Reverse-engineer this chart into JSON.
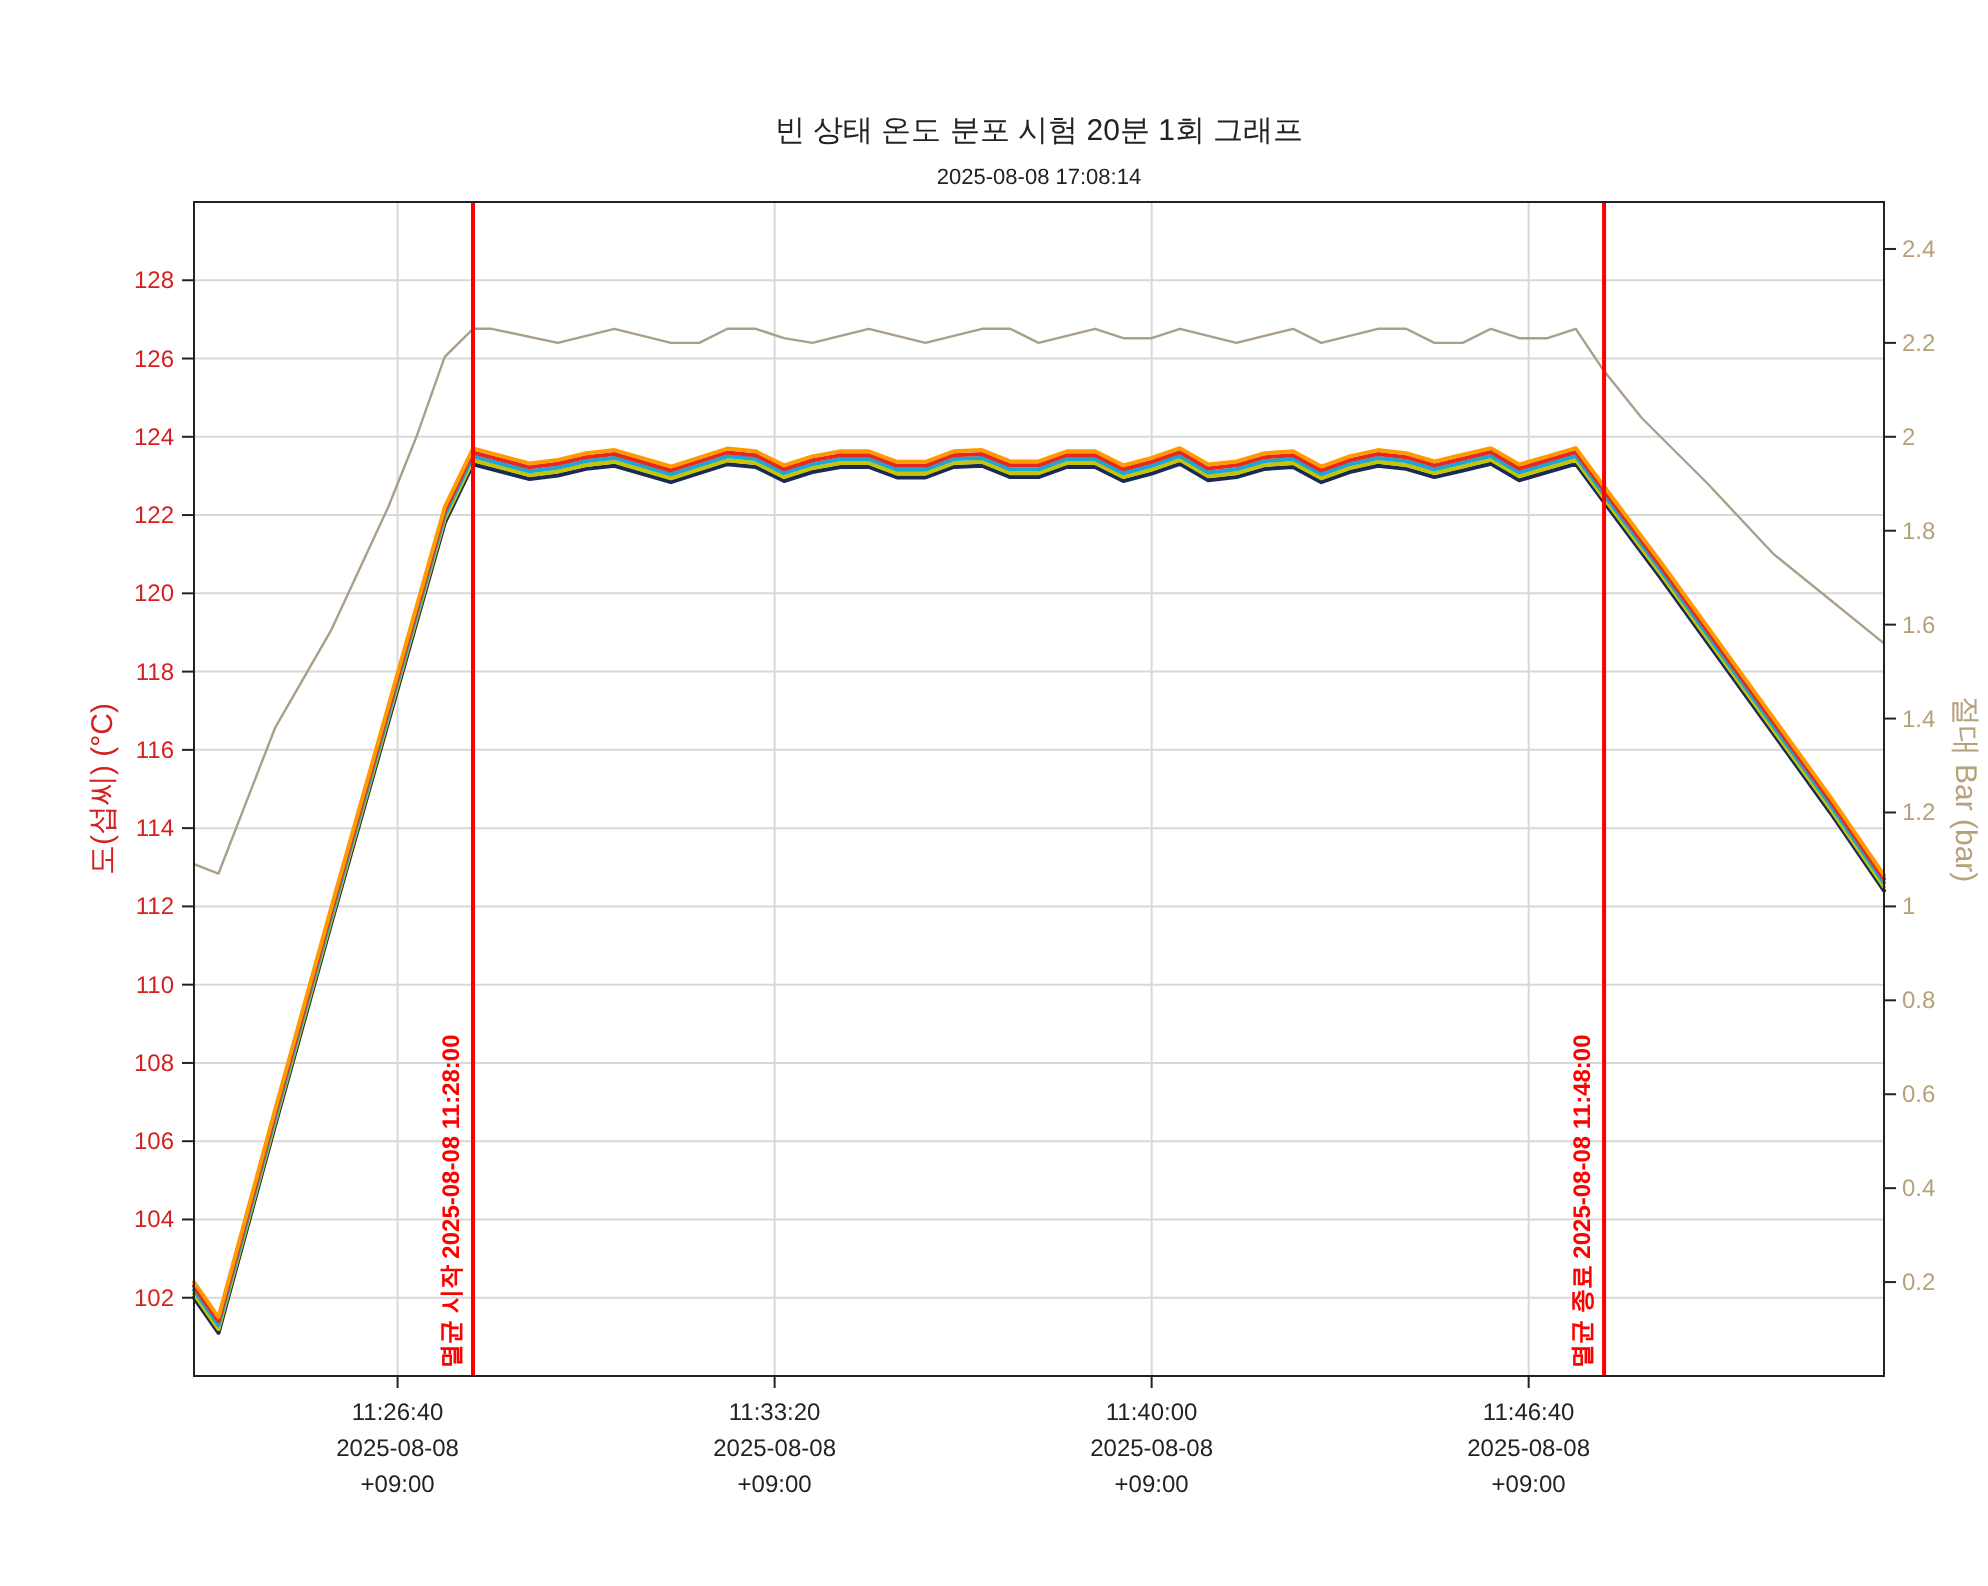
{
  "chart_data": {
    "type": "line",
    "title": "빈 상태 온도 분포 시험 20분 1회 그래프",
    "subtitle": "2025-08-08 17:08:14",
    "ylabel": "도(섭씨) (°C)",
    "y2label": "절대 Bar (bar)",
    "x": [
      "2025-08-08T11:23:04",
      "2025-08-08T11:23:30",
      "2025-08-08T11:24:30",
      "2025-08-08T11:25:30",
      "2025-08-08T11:26:30",
      "2025-08-08T11:27:30",
      "2025-08-08T11:28:00",
      "2025-08-08T11:29:00",
      "2025-08-08T11:29:30",
      "2025-08-08T11:30:00",
      "2025-08-08T11:30:30",
      "2025-08-08T11:31:30",
      "2025-08-08T11:32:30",
      "2025-08-08T11:33:00",
      "2025-08-08T11:33:30",
      "2025-08-08T11:34:00",
      "2025-08-08T11:34:30",
      "2025-08-08T11:35:00",
      "2025-08-08T11:35:30",
      "2025-08-08T11:36:00",
      "2025-08-08T11:36:30",
      "2025-08-08T11:37:00",
      "2025-08-08T11:37:30",
      "2025-08-08T11:38:00",
      "2025-08-08T11:38:30",
      "2025-08-08T11:39:00",
      "2025-08-08T11:39:30",
      "2025-08-08T11:40:00",
      "2025-08-08T11:40:30",
      "2025-08-08T11:41:00",
      "2025-08-08T11:41:30",
      "2025-08-08T11:42:00",
      "2025-08-08T11:42:30",
      "2025-08-08T11:43:00",
      "2025-08-08T11:43:30",
      "2025-08-08T11:44:00",
      "2025-08-08T11:44:30",
      "2025-08-08T11:45:00",
      "2025-08-08T11:45:30",
      "2025-08-08T11:46:00",
      "2025-08-08T11:46:30",
      "2025-08-08T11:47:00",
      "2025-08-08T11:47:30",
      "2025-08-08T11:48:00",
      "2025-08-08T11:49:00",
      "2025-08-08T11:50:30",
      "2025-08-08T11:52:00",
      "2025-08-08T11:52:57"
    ],
    "series": [
      {
        "color": "#1b2a55",
        "values": [
          102.0,
          101.1,
          106.4,
          111.6,
          116.7,
          121.8,
          123.3,
          122.92,
          123.01,
          123.18,
          123.26,
          122.84,
          123.3,
          123.23,
          122.87,
          123.1,
          123.23,
          123.23,
          122.96,
          122.96,
          123.23,
          123.26,
          122.97,
          122.97,
          123.23,
          123.23,
          122.87,
          123.06,
          123.31,
          122.89,
          122.97,
          123.18,
          123.23,
          122.84,
          123.1,
          123.26,
          123.18,
          122.97,
          123.14,
          123.31,
          122.89,
          123.1,
          123.31,
          122.33,
          120.4,
          117.4,
          114.4,
          112.4
        ]
      },
      {
        "color": "#c8c400",
        "values": [
          102.1,
          101.2,
          106.5,
          111.7,
          116.8,
          121.9,
          123.4,
          123.02,
          123.11,
          123.28,
          123.36,
          122.94,
          123.4,
          123.33,
          122.97,
          123.2,
          123.33,
          123.33,
          123.06,
          123.06,
          123.33,
          123.36,
          123.07,
          123.07,
          123.33,
          123.33,
          122.97,
          123.16,
          123.41,
          122.99,
          123.07,
          123.28,
          123.33,
          122.94,
          123.2,
          123.36,
          123.28,
          123.07,
          123.24,
          123.41,
          122.99,
          123.2,
          123.41,
          122.43,
          120.5,
          117.5,
          114.5,
          112.5
        ]
      },
      {
        "color": "#1aa6d6",
        "values": [
          102.2,
          101.3,
          106.6,
          111.8,
          116.9,
          122.0,
          123.5,
          123.12,
          123.21,
          123.38,
          123.46,
          123.04,
          123.5,
          123.43,
          123.07,
          123.3,
          123.43,
          123.43,
          123.16,
          123.16,
          123.43,
          123.46,
          123.17,
          123.17,
          123.43,
          123.43,
          123.07,
          123.26,
          123.51,
          123.09,
          123.17,
          123.38,
          123.43,
          123.04,
          123.3,
          123.46,
          123.38,
          123.17,
          123.34,
          123.51,
          123.09,
          123.3,
          123.51,
          122.53,
          120.6,
          117.6,
          114.6,
          112.6
        ]
      },
      {
        "color": "#e8281e",
        "values": [
          102.3,
          101.4,
          106.7,
          111.9,
          117.0,
          122.1,
          123.6,
          123.22,
          123.31,
          123.48,
          123.56,
          123.14,
          123.6,
          123.53,
          123.17,
          123.4,
          123.53,
          123.53,
          123.26,
          123.26,
          123.53,
          123.56,
          123.27,
          123.27,
          123.53,
          123.53,
          123.17,
          123.36,
          123.61,
          123.19,
          123.27,
          123.48,
          123.53,
          123.14,
          123.4,
          123.56,
          123.48,
          123.27,
          123.44,
          123.61,
          123.19,
          123.4,
          123.61,
          122.63,
          120.7,
          117.7,
          114.7,
          112.7
        ]
      },
      {
        "color": "#ff9a00",
        "values": [
          102.4,
          101.5,
          106.8,
          112.0,
          117.1,
          122.2,
          123.7,
          123.32,
          123.41,
          123.58,
          123.66,
          123.24,
          123.7,
          123.63,
          123.27,
          123.5,
          123.63,
          123.63,
          123.36,
          123.36,
          123.63,
          123.66,
          123.37,
          123.37,
          123.63,
          123.63,
          123.27,
          123.46,
          123.71,
          123.29,
          123.37,
          123.58,
          123.63,
          123.24,
          123.5,
          123.66,
          123.58,
          123.37,
          123.54,
          123.71,
          123.29,
          123.5,
          123.71,
          122.73,
          120.8,
          117.8,
          114.8,
          112.8
        ]
      },
      {
        "color": "#aaa08a",
        "axis": "y2",
        "x": [
          "2025-08-08T11:23:04",
          "2025-08-08T11:23:30",
          "2025-08-08T11:24:30",
          "2025-08-08T11:25:30",
          "2025-08-08T11:26:30",
          "2025-08-08T11:27:00",
          "2025-08-08T11:27:30",
          "2025-08-08T11:28:00",
          "2025-08-08T11:28:20",
          "2025-08-08T11:29:30",
          "2025-08-08T11:30:30",
          "2025-08-08T11:31:30",
          "2025-08-08T11:32:00",
          "2025-08-08T11:32:30",
          "2025-08-08T11:33:00",
          "2025-08-08T11:33:30",
          "2025-08-08T11:34:00",
          "2025-08-08T11:35:00",
          "2025-08-08T11:36:00",
          "2025-08-08T11:37:00",
          "2025-08-08T11:37:30",
          "2025-08-08T11:38:00",
          "2025-08-08T11:39:00",
          "2025-08-08T11:39:30",
          "2025-08-08T11:40:00",
          "2025-08-08T11:40:30",
          "2025-08-08T11:41:30",
          "2025-08-08T11:42:30",
          "2025-08-08T11:43:00",
          "2025-08-08T11:44:00",
          "2025-08-08T11:44:30",
          "2025-08-08T11:45:00",
          "2025-08-08T11:45:30",
          "2025-08-08T11:46:00",
          "2025-08-08T11:46:30",
          "2025-08-08T11:47:00",
          "2025-08-08T11:47:30",
          "2025-08-08T11:48:00",
          "2025-08-08T11:48:40",
          "2025-08-08T11:49:50",
          "2025-08-08T11:51:00",
          "2025-08-08T11:52:57"
        ],
        "values": [
          1.09,
          1.07,
          1.38,
          1.59,
          1.85,
          2.0,
          2.17,
          2.23,
          2.23,
          2.2,
          2.23,
          2.2,
          2.2,
          2.23,
          2.23,
          2.21,
          2.2,
          2.23,
          2.2,
          2.23,
          2.23,
          2.2,
          2.23,
          2.21,
          2.21,
          2.23,
          2.2,
          2.23,
          2.2,
          2.23,
          2.23,
          2.2,
          2.2,
          2.23,
          2.21,
          2.21,
          2.23,
          2.14,
          2.04,
          1.9,
          1.75,
          1.56
        ]
      }
    ],
    "xlim": [
      "2025-08-08T11:23:04",
      "2025-08-08T11:52:57"
    ],
    "xticks": [
      {
        "value": "2025-08-08T11:26:40",
        "label": "11:26:40\n2025-08-08\n+09:00"
      },
      {
        "value": "2025-08-08T11:33:20",
        "label": "11:33:20\n2025-08-08\n+09:00"
      },
      {
        "value": "2025-08-08T11:40:00",
        "label": "11:40:00\n2025-08-08\n+09:00"
      },
      {
        "value": "2025-08-08T11:46:40",
        "label": "11:46:40\n2025-08-08\n+09:00"
      }
    ],
    "ylim": [
      100,
      130
    ],
    "yticks": [
      102,
      104,
      106,
      108,
      110,
      112,
      114,
      116,
      118,
      120,
      122,
      124,
      126,
      128
    ],
    "y2lim": [
      0,
      2.5
    ],
    "y2ticks": [
      0.2,
      0.4,
      0.6,
      0.8,
      1,
      1.2,
      1.4,
      1.6,
      1.8,
      2,
      2.2,
      2.4
    ],
    "ref_lines": [
      {
        "axis": "x",
        "value": "2025-08-08T11:28:00",
        "label": "멸균 시작  2025-08-08 11:28:00",
        "color": "#ff0000"
      },
      {
        "axis": "x",
        "value": "2025-08-08T11:48:00",
        "label": "멸균 종료  2025-08-08 11:48:00",
        "color": "#ff0000"
      }
    ],
    "grid": true,
    "marker": "none"
  }
}
